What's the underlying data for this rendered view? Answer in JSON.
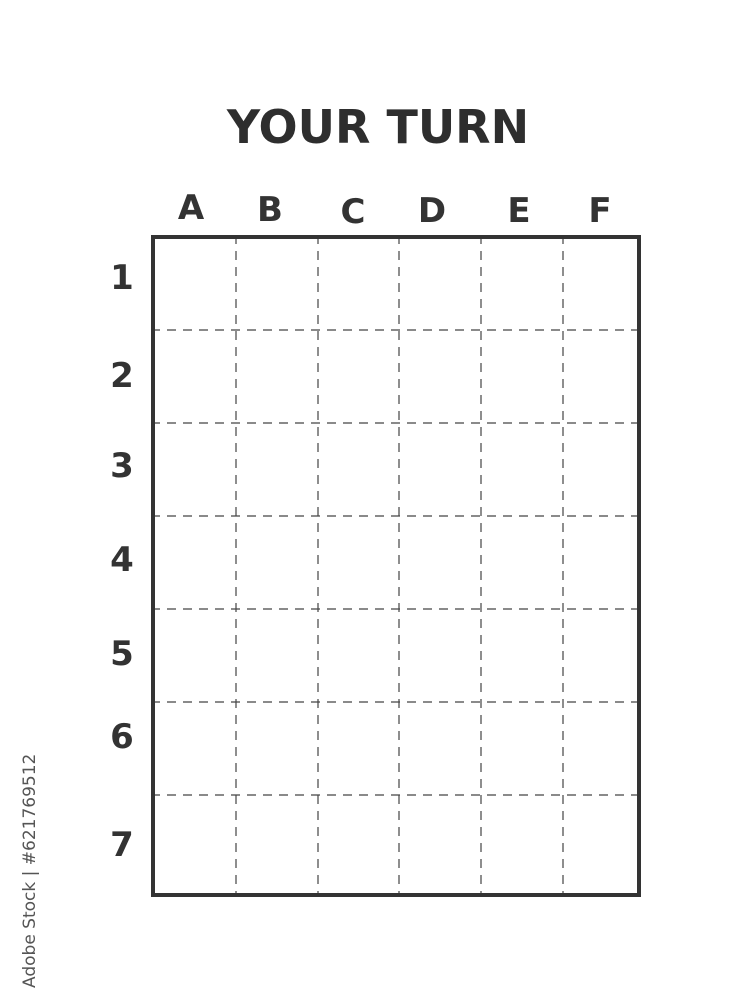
{
  "title": "YOUR TURN",
  "columns": [
    "A",
    "B",
    "C",
    "D",
    "E",
    "F"
  ],
  "rows": [
    "1",
    "2",
    "3",
    "4",
    "5",
    "6",
    "7"
  ],
  "watermark": {
    "brand": "Adobe Stock",
    "separator": "|",
    "id": "#621769512"
  },
  "colors": {
    "ink": "#333333",
    "background": "#ffffff"
  }
}
